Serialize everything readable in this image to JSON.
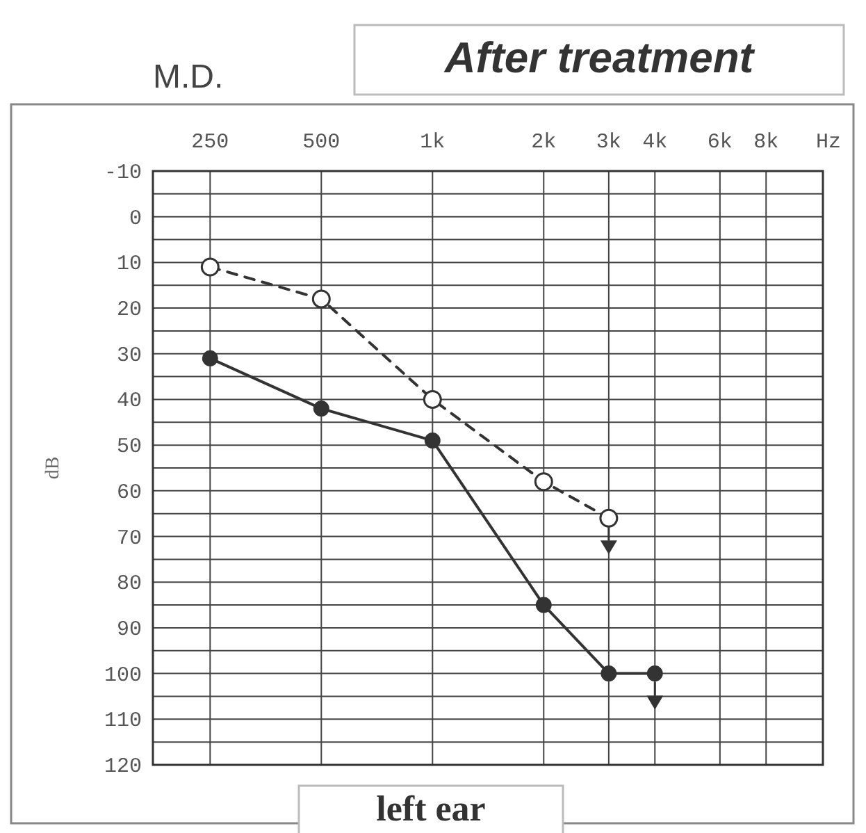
{
  "chart_data": {
    "type": "line",
    "title": "After treatment",
    "subtitle": "M.D.",
    "xlabel": "Hz",
    "ylabel": "dB",
    "annotations": [
      "left ear"
    ],
    "log": "x",
    "grid": true,
    "marker": "circle",
    "xlim": [
      175,
      11400
    ],
    "xticks": [
      250,
      500,
      {
        "value": 1000,
        "label": "1k"
      },
      {
        "value": 2000,
        "label": "2k"
      },
      {
        "value": 3000,
        "label": "3k"
      },
      {
        "value": 4000,
        "label": "4k"
      },
      {
        "value": 6000,
        "label": "6k"
      },
      {
        "value": 8000,
        "label": "8k"
      }
    ],
    "ylim": [
      120,
      -10
    ],
    "yticks": [
      -10,
      {
        "value": -5,
        "label": null
      },
      0,
      {
        "value": 5,
        "label": null
      },
      10,
      {
        "value": 15,
        "label": null
      },
      20,
      {
        "value": 25,
        "label": null
      },
      30,
      {
        "value": 35,
        "label": null
      },
      40,
      {
        "value": 45,
        "label": null
      },
      50,
      {
        "value": 55,
        "label": null
      },
      60,
      {
        "value": 65,
        "label": null
      },
      70,
      {
        "value": 75,
        "label": null
      },
      80,
      {
        "value": 85,
        "label": null
      },
      90,
      {
        "value": 95,
        "label": null
      },
      100,
      {
        "value": 105,
        "label": null
      },
      110,
      {
        "value": 115,
        "label": null
      },
      120
    ],
    "series": [
      {
        "color": "#333333",
        "line_style": "solid",
        "x": [
          250,
          500,
          1000,
          2000,
          3000,
          4000
        ],
        "values": [
          31,
          42,
          49,
          85,
          100,
          100
        ]
      },
      {
        "color": "#333333",
        "line_style": "dashed",
        "x": [
          250,
          500,
          1000,
          2000,
          3000
        ],
        "values": [
          11,
          18,
          40,
          58,
          66
        ]
      }
    ]
  }
}
